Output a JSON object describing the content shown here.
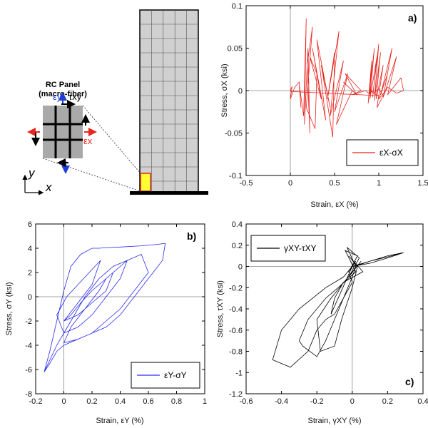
{
  "illustration": {
    "panel_title": "RC Panel",
    "panel_subtitle": "(macro-fiber)",
    "label_ey": "εy",
    "label_txy": "τxy",
    "label_ex": "εx",
    "axis_y": "y",
    "axis_x": "x",
    "colors": {
      "grid_fill": "#c8c8c8",
      "highlight": "#ffff33",
      "highlight_border": "#e02020"
    }
  },
  "chart_data": [
    {
      "id": "a",
      "letter": "a)",
      "type": "line",
      "xlim": [
        -0.5,
        1.5
      ],
      "ylim": [
        -0.1,
        0.1
      ],
      "xticks": [
        -0.5,
        0,
        0.5,
        1,
        1.5
      ],
      "yticks": [
        -0.1,
        -0.05,
        0,
        0.05,
        0.1
      ],
      "xtick_labels": [
        "-0.5",
        "0",
        "0.5",
        "1",
        "1.5"
      ],
      "ytick_labels": [
        "-0.1",
        "-0.05",
        "0",
        "0.05",
        "0.1"
      ],
      "xlabel": "Strain, εX (%)",
      "ylabel": "Stress, σX (ksi)",
      "legend": "εX-σX",
      "legend_loc": "bottom-right",
      "color": "#e8251f",
      "series": [
        {
          "name": "εX-σX",
          "x": [
            0,
            0.02,
            0,
            0.05,
            0.1,
            0.12,
            0.1,
            0.15,
            0.18,
            0.16,
            0.2,
            0.22,
            0.19,
            0.25,
            0.18,
            0.28,
            0.3,
            0.22,
            0.35,
            0.25,
            0.4,
            0.3,
            0.45,
            0.35,
            0.48,
            0.5,
            0.42,
            0.55,
            0.45,
            0.6,
            0.5,
            0.65,
            0.52,
            0.7,
            0.6,
            0.75,
            0.62,
            0.8,
            0.7,
            0.85,
            0.9,
            0.92,
            0.88,
            0.95,
            0.9,
            0.98,
            0.93,
            1.0,
            0.95,
            1.02,
            0.97,
            1.05,
            0.98,
            1.08,
            1.0,
            1.1,
            1.02,
            1.15,
            1.05,
            1.2,
            1.1,
            1.25,
            1.28,
            1.2,
            1.1,
            1.05,
            1.0,
            0.95,
            0.9,
            0.95,
            1.0,
            0.8,
            0.6,
            0.4,
            0.2,
            0.0
          ],
          "y": [
            0,
            0.005,
            -0.01,
            0.004,
            0.01,
            -0.02,
            0.008,
            -0.03,
            0.085,
            -0.04,
            0.05,
            -0.05,
            0.03,
            0.075,
            -0.02,
            -0.045,
            0.02,
            0.04,
            -0.01,
            0.05,
            -0.035,
            0.06,
            -0.02,
            0.03,
            -0.055,
            0.045,
            -0.01,
            0.07,
            -0.03,
            0.035,
            -0.025,
            0.02,
            -0.04,
            0.0,
            0.01,
            -0.005,
            0.02,
            0.0,
            -0.005,
            0.0,
            -0.004,
            0.035,
            -0.015,
            0.05,
            -0.01,
            0.04,
            -0.008,
            0.055,
            -0.012,
            0.045,
            -0.01,
            0.03,
            -0.02,
            0.0,
            -0.01,
            0.02,
            -0.005,
            0.05,
            -0.008,
            0.04,
            -0.005,
            0.015,
            0.0,
            -0.003,
            0.004,
            -0.006,
            0.002,
            -0.002,
            0.001,
            -0.004,
            -0.006,
            -0.005,
            -0.004,
            -0.003,
            -0.002,
            -0.001
          ]
        }
      ]
    },
    {
      "id": "b",
      "letter": "b)",
      "type": "line",
      "xlim": [
        -0.2,
        1
      ],
      "ylim": [
        -8,
        6
      ],
      "xticks": [
        -0.2,
        0,
        0.2,
        0.4,
        0.6,
        0.8,
        1
      ],
      "yticks": [
        -8,
        -6,
        -4,
        -2,
        0,
        2,
        4,
        6
      ],
      "xtick_labels": [
        "-0.2",
        "0",
        "0.2",
        "0.4",
        "0.6",
        "0.8",
        "1"
      ],
      "ytick_labels": [
        "-8",
        "-6",
        "-4",
        "-2",
        "0",
        "2",
        "4",
        "6"
      ],
      "xlabel": "Strain, εY (%)",
      "ylabel": "Stress, σY (ksi)",
      "legend": "εY-σY",
      "legend_loc": "bottom-right",
      "color": "#2a2af0",
      "series": [
        {
          "name": "εY-σY",
          "x": [
            -0.14,
            -0.1,
            -0.05,
            0.0,
            0.05,
            0.12,
            0.2,
            0.25,
            0.3,
            0.4,
            0.55,
            0.65,
            0.72,
            0.7,
            0.6,
            0.5,
            0.4,
            0.3,
            0.2,
            0.1,
            0.0,
            -0.05,
            -0.1,
            -0.14,
            -0.05,
            0.05,
            0.15,
            0.25,
            0.35,
            0.45,
            0.55,
            0.6,
            0.5,
            0.4,
            0.3,
            0.2,
            0.1,
            0.0,
            0.05,
            0.15,
            0.25,
            0.3,
            0.35,
            0.4,
            0.45,
            0.4,
            0.3,
            0.2,
            0.1,
            0.0,
            -0.05,
            0.02,
            0.1,
            0.18,
            0.26,
            0.2,
            0.1,
            0.0,
            0.05,
            0.12,
            0.2,
            0.25,
            0.3,
            0.35,
            0.3,
            0.2,
            0.1,
            0.0
          ],
          "y": [
            -6.2,
            -4.5,
            -2.0,
            0.5,
            2.5,
            3.5,
            4.0,
            4.0,
            4.05,
            4.1,
            4.2,
            4.3,
            4.4,
            3.0,
            1.5,
            0.0,
            -1.5,
            -2.5,
            -3.0,
            -3.5,
            -4.0,
            -4.5,
            -5.5,
            -6.2,
            -4.0,
            -2.0,
            0.0,
            1.5,
            2.5,
            3.0,
            3.5,
            2.0,
            0.5,
            -1.0,
            -2.0,
            -3.0,
            -3.5,
            -3.8,
            -2.5,
            -1.0,
            0.5,
            1.5,
            2.0,
            2.5,
            3.0,
            1.5,
            0.0,
            -1.5,
            -2.5,
            -3.0,
            -1.5,
            0.0,
            1.0,
            2.0,
            3.0,
            1.0,
            -0.5,
            -2.0,
            -1.5,
            -0.5,
            0.5,
            1.0,
            1.5,
            2.0,
            0.5,
            -0.5,
            -1.5,
            -2.0
          ]
        }
      ]
    },
    {
      "id": "c",
      "letter": "c)",
      "type": "line",
      "xlim": [
        -0.6,
        0.4
      ],
      "ylim": [
        -1.2,
        0.4
      ],
      "xticks": [
        -0.6,
        -0.4,
        -0.2,
        0,
        0.2,
        0.4
      ],
      "yticks": [
        -1.2,
        -1,
        -0.8,
        -0.6,
        -0.4,
        -0.2,
        0,
        0.2,
        0.4
      ],
      "xtick_labels": [
        "-0.6",
        "-0.4",
        "-0.2",
        "0",
        "0.2",
        "0.4"
      ],
      "ytick_labels": [
        "-1.2",
        "-1",
        "-0.8",
        "-0.6",
        "-0.4",
        "-0.2",
        "0",
        "0.2",
        "0.4"
      ],
      "xlabel": "Strain, γXY (%)",
      "ylabel": "Stress, τXY (ksi)",
      "legend": "γXY-τXY",
      "legend_loc": "top-left",
      "color": "#000000",
      "series": [
        {
          "name": "γXY-τXY",
          "x": [
            0.0,
            0.05,
            0.1,
            0.2,
            0.29,
            0.2,
            0.1,
            0.0,
            -0.05,
            -0.15,
            -0.3,
            -0.4,
            -0.45,
            -0.35,
            -0.25,
            -0.2,
            -0.15,
            -0.1,
            -0.05,
            0.0,
            -0.02,
            0.02,
            -0.01,
            0.03,
            -0.04,
            0.02,
            -0.08,
            -0.15,
            -0.25,
            -0.3,
            -0.28,
            -0.2,
            -0.15,
            -0.1,
            -0.05,
            0.0,
            0.02,
            -0.03,
            0.04,
            -0.02,
            0.05,
            -0.12,
            -0.2,
            -0.18,
            -0.1,
            -0.06,
            0.0,
            0.03,
            -0.02,
            0.06,
            -0.05,
            -0.1,
            -0.12,
            -0.08,
            -0.04,
            0.0,
            0.1,
            0.2,
            0.29
          ],
          "y": [
            0.0,
            0.02,
            0.05,
            0.09,
            0.13,
            0.08,
            0.03,
            0.0,
            -0.1,
            -0.2,
            -0.4,
            -0.6,
            -0.88,
            -0.95,
            -0.8,
            -0.6,
            -0.5,
            -0.45,
            -0.3,
            -0.15,
            -0.05,
            0.05,
            -0.02,
            0.1,
            0.15,
            -0.05,
            -0.2,
            -0.3,
            -0.5,
            -0.7,
            -0.75,
            -0.85,
            -0.7,
            -0.5,
            -0.3,
            -0.1,
            0.0,
            0.18,
            0.08,
            -0.1,
            0.05,
            -0.3,
            -0.5,
            -0.8,
            -0.75,
            -0.5,
            -0.2,
            0.0,
            0.1,
            -0.05,
            -0.15,
            -0.3,
            -0.45,
            -0.3,
            -0.15,
            0.0,
            0.05,
            0.1,
            0.13
          ]
        }
      ]
    }
  ]
}
